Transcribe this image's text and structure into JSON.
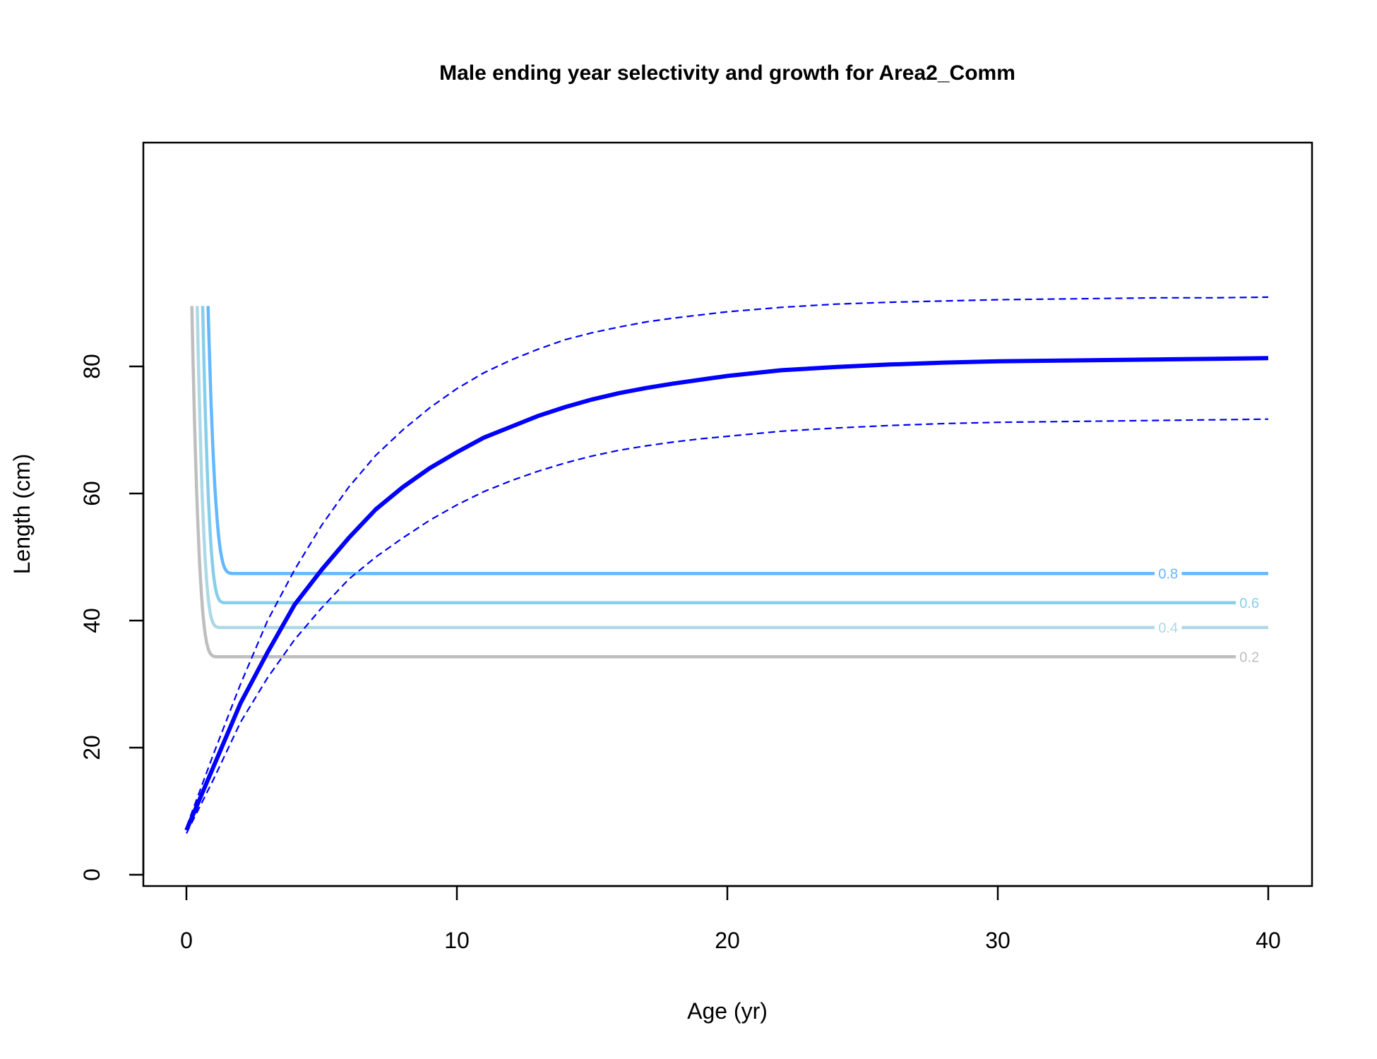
{
  "chart_data": {
    "type": "line",
    "title": "Male ending year selectivity and growth for Area2_Comm",
    "xlabel": "Age (yr)",
    "ylabel": "Length (cm)",
    "xlim": [
      0,
      40
    ],
    "ylim": [
      0,
      90
    ],
    "x_ticks": [
      "0",
      "10",
      "20",
      "30",
      "40"
    ],
    "y_ticks": [
      "0",
      "20",
      "40",
      "60",
      "80"
    ],
    "grid": false,
    "legend": "none",
    "growth_mean": {
      "color": "#0000ff",
      "x": [
        0,
        1,
        2,
        3,
        4,
        5,
        6,
        7,
        8,
        9,
        10,
        11,
        12,
        13,
        14,
        15,
        16,
        17,
        18,
        19,
        20,
        22,
        24,
        26,
        28,
        30,
        32,
        34,
        36,
        38,
        40
      ],
      "y": [
        7,
        17,
        27,
        35,
        42.5,
        48,
        53,
        57.5,
        61,
        64,
        66.5,
        68.8,
        70.5,
        72.2,
        73.6,
        74.8,
        75.8,
        76.6,
        77.3,
        77.9,
        78.5,
        79.4,
        79.9,
        80.3,
        80.6,
        80.8,
        80.9,
        81.0,
        81.1,
        81.2,
        81.3
      ]
    },
    "growth_upper": {
      "color": "#0000ff",
      "x": [
        0,
        1,
        2,
        3,
        4,
        5,
        6,
        7,
        8,
        9,
        10,
        11,
        12,
        13,
        14,
        15,
        16,
        17,
        18,
        19,
        20,
        22,
        24,
        26,
        28,
        30,
        32,
        34,
        36,
        38,
        40
      ],
      "y": [
        7.5,
        19,
        30,
        40,
        48,
        55,
        61,
        66,
        70,
        73.5,
        76.5,
        79,
        81,
        82.7,
        84.2,
        85.3,
        86.2,
        87,
        87.6,
        88.1,
        88.6,
        89.3,
        89.8,
        90.1,
        90.3,
        90.5,
        90.6,
        90.7,
        90.8,
        90.8,
        90.9
      ]
    },
    "growth_lower": {
      "color": "#0000ff",
      "x": [
        0,
        1,
        2,
        3,
        4,
        5,
        6,
        7,
        8,
        9,
        10,
        11,
        12,
        13,
        14,
        15,
        16,
        17,
        18,
        19,
        20,
        22,
        24,
        26,
        28,
        30,
        32,
        34,
        36,
        38,
        40
      ],
      "y": [
        6.5,
        15,
        24,
        31,
        37,
        42,
        46.5,
        50,
        53,
        55.8,
        58.2,
        60.3,
        62,
        63.5,
        64.8,
        65.9,
        66.8,
        67.5,
        68.1,
        68.6,
        69,
        69.8,
        70.3,
        70.7,
        71,
        71.2,
        71.3,
        71.4,
        71.5,
        71.6,
        71.7
      ]
    },
    "selectivity_contours": [
      {
        "label": "0.2",
        "color": "#bebebe",
        "x_start": 0.2,
        "x_step": 1.0,
        "level_y": 34.3,
        "x_end": 38.8,
        "label_x": 39.3
      },
      {
        "label": "0.4",
        "color": "#add8e6",
        "x_start": 0.4,
        "x_step": 0.9,
        "level_y": 38.9,
        "x_end": 40,
        "label_x": 36.3,
        "label_gap": [
          35.8,
          36.8
        ]
      },
      {
        "label": "0.6",
        "color": "#87ceeb",
        "x_start": 0.6,
        "x_step": 0.9,
        "level_y": 42.8,
        "x_end": 38.8,
        "label_x": 39.3
      },
      {
        "label": "0.8",
        "color": "#63b8ff",
        "x_start": 0.8,
        "x_step": 1.0,
        "level_y": 47.4,
        "x_end": 40,
        "label_x": 36.3,
        "label_gap": [
          35.8,
          36.8
        ]
      }
    ]
  }
}
